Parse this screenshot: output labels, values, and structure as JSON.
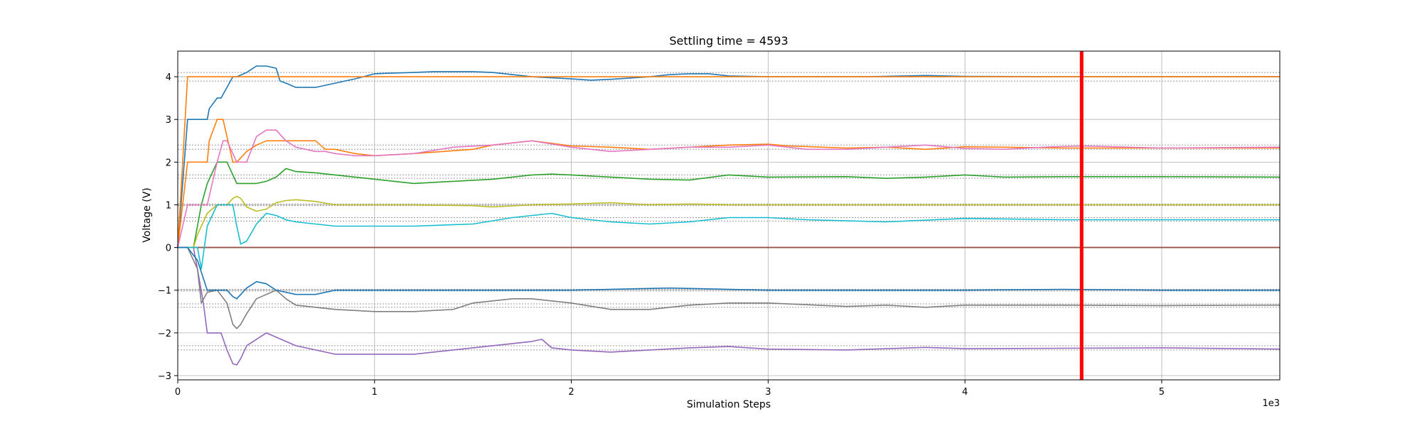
{
  "chart_data": {
    "type": "line",
    "title": "Settling time = 4593",
    "xlabel": "Simulation Steps",
    "ylabel": "Voltage (V)",
    "x_offset_text": "1e3",
    "xlim": [
      0,
      5600
    ],
    "ylim": [
      -3.1,
      4.6
    ],
    "grid": true,
    "xticks": [
      0,
      1000,
      2000,
      3000,
      4000,
      5000
    ],
    "xtick_labels": [
      "0",
      "1",
      "2",
      "3",
      "4",
      "5"
    ],
    "yticks": [
      -3,
      -2,
      -1,
      0,
      1,
      2,
      3,
      4
    ],
    "ytick_labels": [
      "−3",
      "−2",
      "−1",
      "0",
      "1",
      "2",
      "3",
      "4"
    ],
    "settling_time": 4593,
    "settling_line_color": "#ff0000",
    "reference_bands": [
      [
        4.1,
        3.9
      ],
      [
        2.4,
        2.3
      ],
      [
        1.7,
        1.62
      ],
      [
        1.02,
        0.98
      ],
      [
        0.7,
        0.62
      ],
      [
        -0.98,
        -1.02
      ],
      [
        -1.32,
        -1.4
      ],
      [
        -2.3,
        -2.4
      ]
    ],
    "series": [
      {
        "color": "#1f77b4",
        "x": [
          0,
          50,
          80,
          150,
          160,
          200,
          220,
          250,
          280,
          300,
          350,
          400,
          450,
          500,
          520,
          550,
          600,
          700,
          750,
          800,
          900,
          1000,
          1050,
          1200,
          1300,
          1500,
          1600,
          1700,
          1800,
          2000,
          2100,
          2200,
          2300,
          2400,
          2500,
          2600,
          2700,
          2800,
          3000,
          3500,
          3800,
          4000,
          4500,
          4593,
          5000,
          5600
        ],
        "y": [
          0,
          3,
          3,
          3,
          3.25,
          3.5,
          3.5,
          3.75,
          4,
          4,
          4.1,
          4.25,
          4.25,
          4.2,
          3.9,
          3.85,
          3.75,
          3.75,
          3.8,
          3.85,
          3.95,
          4.07,
          4.08,
          4.1,
          4.12,
          4.12,
          4.1,
          4.05,
          4.0,
          3.95,
          3.92,
          3.94,
          3.97,
          4.0,
          4.05,
          4.07,
          4.07,
          4.02,
          4.0,
          4.0,
          4.03,
          4.01,
          4.0,
          4.0,
          4.0,
          4.0
        ]
      },
      {
        "color": "#ff7f0e",
        "x": [
          0,
          50,
          5600
        ],
        "y": [
          0,
          4,
          4
        ]
      },
      {
        "color": "#ff7f0e",
        "x": [
          0,
          50,
          150,
          160,
          200,
          230,
          250,
          280,
          300,
          350,
          400,
          450,
          500,
          700,
          750,
          800,
          900,
          1000,
          1200,
          1500,
          1600,
          1800,
          2000,
          2200,
          2400,
          2600,
          2800,
          3000,
          3100,
          3400,
          3600,
          3800,
          4000,
          4200,
          4500,
          5000,
          5600
        ],
        "y": [
          0,
          2,
          2,
          2.5,
          3,
          3,
          2.6,
          2.0,
          2.0,
          2.25,
          2.4,
          2.5,
          2.5,
          2.5,
          2.3,
          2.3,
          2.2,
          2.15,
          2.2,
          2.3,
          2.4,
          2.5,
          2.38,
          2.35,
          2.3,
          2.35,
          2.4,
          2.42,
          2.38,
          2.33,
          2.35,
          2.3,
          2.36,
          2.35,
          2.33,
          2.33,
          2.33
        ]
      },
      {
        "color": "#2ca02c",
        "x": [
          0,
          80,
          100,
          120,
          150,
          200,
          250,
          300,
          350,
          400,
          450,
          500,
          550,
          600,
          700,
          800,
          1000,
          1200,
          1400,
          1600,
          1800,
          1900,
          2000,
          2200,
          2400,
          2600,
          2800,
          3000,
          3400,
          3600,
          3800,
          4000,
          4200,
          4500,
          5000,
          5600
        ],
        "y": [
          0,
          0,
          0.5,
          1,
          1.5,
          2,
          2,
          1.5,
          1.5,
          1.5,
          1.55,
          1.65,
          1.85,
          1.78,
          1.75,
          1.7,
          1.6,
          1.5,
          1.55,
          1.6,
          1.7,
          1.72,
          1.7,
          1.65,
          1.6,
          1.58,
          1.7,
          1.65,
          1.66,
          1.62,
          1.65,
          1.7,
          1.65,
          1.66,
          1.66,
          1.65
        ]
      },
      {
        "color": "#d62728",
        "x": [
          0,
          5600
        ],
        "y": [
          0,
          0
        ]
      },
      {
        "color": "#9467bd",
        "x": [
          0,
          50,
          80,
          100,
          130,
          150,
          200,
          220,
          250,
          280,
          300,
          320,
          350,
          400,
          450,
          500,
          550,
          600,
          700,
          800,
          1000,
          1200,
          1400,
          1600,
          1800,
          1850,
          1900,
          2000,
          2200,
          2400,
          2600,
          2800,
          3000,
          3400,
          3800,
          4000,
          4500,
          5000,
          5600
        ],
        "y": [
          0,
          0,
          0,
          -0.5,
          -1.3,
          -2,
          -2,
          -2,
          -2.4,
          -2.72,
          -2.75,
          -2.6,
          -2.3,
          -2.15,
          -2.0,
          -2.1,
          -2.2,
          -2.3,
          -2.4,
          -2.5,
          -2.5,
          -2.5,
          -2.4,
          -2.3,
          -2.2,
          -2.15,
          -2.35,
          -2.4,
          -2.45,
          -2.4,
          -2.35,
          -2.32,
          -2.38,
          -2.4,
          -2.34,
          -2.37,
          -2.36,
          -2.35,
          -2.38
        ]
      },
      {
        "color": "#8c564b",
        "x": [
          0,
          5600
        ],
        "y": [
          0,
          0
        ]
      },
      {
        "color": "#e377c2",
        "x": [
          0,
          50,
          150,
          200,
          230,
          250,
          280,
          300,
          350,
          400,
          450,
          500,
          550,
          600,
          700,
          750,
          800,
          900,
          1000,
          1200,
          1400,
          1600,
          1800,
          2000,
          2200,
          2400,
          2600,
          2800,
          3000,
          3200,
          3400,
          3600,
          3800,
          4000,
          4200,
          4400,
          4600,
          5000,
          5600
        ],
        "y": [
          0,
          1,
          1,
          2.0,
          2.5,
          2.5,
          2.2,
          2.0,
          2.0,
          2.6,
          2.75,
          2.75,
          2.5,
          2.35,
          2.25,
          2.25,
          2.2,
          2.15,
          2.15,
          2.2,
          2.35,
          2.4,
          2.5,
          2.35,
          2.25,
          2.3,
          2.35,
          2.35,
          2.4,
          2.3,
          2.3,
          2.35,
          2.4,
          2.32,
          2.3,
          2.35,
          2.38,
          2.33,
          2.35
        ]
      },
      {
        "color": "#7f7f7f",
        "x": [
          0,
          50,
          100,
          120,
          150,
          200,
          250,
          280,
          300,
          320,
          350,
          400,
          450,
          500,
          550,
          600,
          700,
          800,
          1000,
          1200,
          1400,
          1500,
          1600,
          1700,
          1800,
          2000,
          2200,
          2400,
          2600,
          2800,
          3000,
          3400,
          3600,
          3800,
          4000,
          4500,
          5000,
          5600
        ],
        "y": [
          0,
          0,
          -0.5,
          -1.3,
          -1.05,
          -1.0,
          -1.3,
          -1.8,
          -1.9,
          -1.8,
          -1.55,
          -1.2,
          -1.1,
          -1.0,
          -1.2,
          -1.35,
          -1.4,
          -1.45,
          -1.5,
          -1.5,
          -1.45,
          -1.3,
          -1.25,
          -1.2,
          -1.2,
          -1.3,
          -1.45,
          -1.45,
          -1.35,
          -1.3,
          -1.3,
          -1.38,
          -1.35,
          -1.4,
          -1.35,
          -1.35,
          -1.36,
          -1.35
        ]
      },
      {
        "color": "#bcbd22",
        "x": [
          0,
          80,
          100,
          150,
          200,
          250,
          280,
          300,
          320,
          350,
          400,
          450,
          500,
          550,
          600,
          700,
          800,
          1000,
          1200,
          1500,
          1600,
          1800,
          2000,
          2200,
          2400,
          2600,
          2800,
          3000,
          3500,
          4000,
          4500,
          5000,
          5600
        ],
        "y": [
          0,
          0,
          0.3,
          0.8,
          1.0,
          1.0,
          1.15,
          1.2,
          1.15,
          0.95,
          0.85,
          0.9,
          1.05,
          1.1,
          1.12,
          1.08,
          1.0,
          1.0,
          1.0,
          0.98,
          0.95,
          1.0,
          1.02,
          1.05,
          1.0,
          1.02,
          1.0,
          1.0,
          1.0,
          1.0,
          1.0,
          1.0,
          1.0
        ]
      },
      {
        "color": "#17becf",
        "x": [
          0,
          100,
          120,
          150,
          200,
          250,
          280,
          300,
          320,
          350,
          400,
          450,
          500,
          550,
          600,
          700,
          800,
          1000,
          1200,
          1500,
          1700,
          1800,
          1900,
          2000,
          2200,
          2400,
          2600,
          2800,
          3000,
          3200,
          3600,
          4000,
          4500,
          5000,
          5600
        ],
        "y": [
          0,
          0,
          -0.5,
          0.5,
          1.0,
          1.0,
          1.0,
          0.5,
          0.08,
          0.15,
          0.55,
          0.8,
          0.75,
          0.65,
          0.6,
          0.55,
          0.5,
          0.5,
          0.5,
          0.55,
          0.7,
          0.75,
          0.8,
          0.7,
          0.6,
          0.55,
          0.6,
          0.7,
          0.7,
          0.65,
          0.6,
          0.68,
          0.65,
          0.65,
          0.65
        ]
      },
      {
        "color": "#1f77b4",
        "x": [
          0,
          50,
          100,
          150,
          200,
          250,
          280,
          300,
          350,
          400,
          450,
          500,
          550,
          600,
          700,
          800,
          1000,
          1200,
          1500,
          2000,
          2500,
          3000,
          4000,
          4500,
          5000,
          5600
        ],
        "y": [
          0,
          0,
          -0.3,
          -1.0,
          -1.0,
          -1.0,
          -1.15,
          -1.2,
          -0.95,
          -0.8,
          -0.85,
          -1.0,
          -1.05,
          -1.1,
          -1.1,
          -1.0,
          -1.0,
          -1.0,
          -1.0,
          -1.0,
          -0.95,
          -1.0,
          -1.0,
          -0.98,
          -1.0,
          -1.0
        ]
      }
    ]
  }
}
